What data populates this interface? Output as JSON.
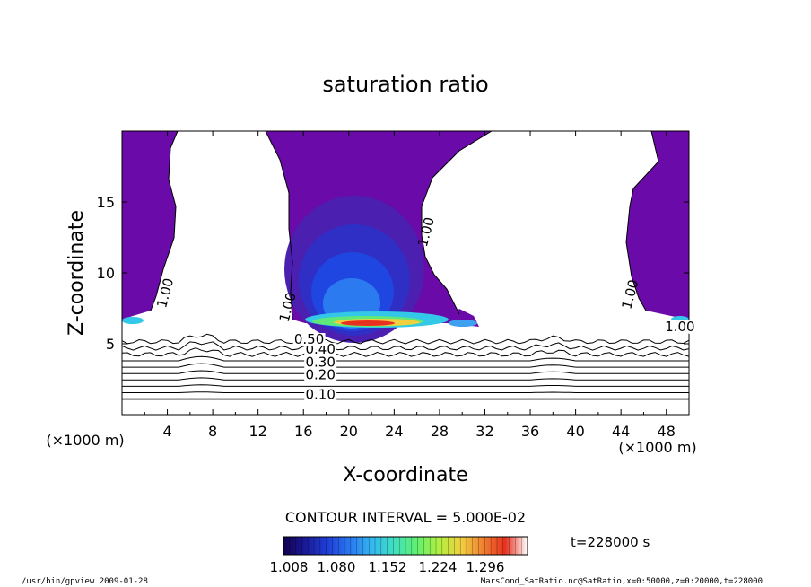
{
  "chart_data": {
    "type": "contour",
    "title": "saturation ratio",
    "xlabel": "X-coordinate",
    "ylabel": "Z-coordinate",
    "x_unit": "(×1000 m)",
    "y_unit": "(×1000 m)",
    "xlim": [
      0,
      50
    ],
    "ylim": [
      0,
      20
    ],
    "x_ticks": [
      4,
      8,
      12,
      16,
      20,
      24,
      28,
      32,
      36,
      40,
      44,
      48
    ],
    "y_ticks": [
      5,
      10,
      15
    ],
    "contour_labels": [
      {
        "text": "0.10",
        "x": 17.5,
        "y": 1.1
      },
      {
        "text": "0.20",
        "x": 17.5,
        "y": 2.5
      },
      {
        "text": "0.30",
        "x": 17.5,
        "y": 3.4
      },
      {
        "text": "0.40",
        "x": 17.5,
        "y": 4.3
      },
      {
        "text": "0.50",
        "x": 16.5,
        "y": 5.0
      },
      {
        "text": "1.00",
        "x": 4.2,
        "y": 8.5
      },
      {
        "text": "1.00",
        "x": 15.0,
        "y": 7.5
      },
      {
        "text": "1.00",
        "x": 27.2,
        "y": 12.8
      },
      {
        "text": "1.00",
        "x": 45.2,
        "y": 8.4
      },
      {
        "text": "1.00",
        "x": 49.2,
        "y": 5.9
      }
    ],
    "contour_interval_text": "CONTOUR INTERVAL = 5.000E-02",
    "colorbar": {
      "tick_labels": [
        "1.008",
        "1.080",
        "1.152",
        "1.224",
        "1.296"
      ],
      "colors": [
        "#120050",
        "#1a1a9a",
        "#1f3fd8",
        "#2a78f0",
        "#33b8f0",
        "#40e0c0",
        "#60f070",
        "#b0f040",
        "#f0d040",
        "#f08030",
        "#e83020",
        "#ffffff"
      ]
    },
    "time_label": "t=228000 s",
    "fill_color": "#6a0aa8",
    "line_color": "#000000"
  },
  "footer": {
    "left": "/usr/bin/gpview  2009-01-28",
    "right": "MarsCond_SatRatio.nc@SatRatio,x=0:50000,z=0:20000,t=228000"
  }
}
